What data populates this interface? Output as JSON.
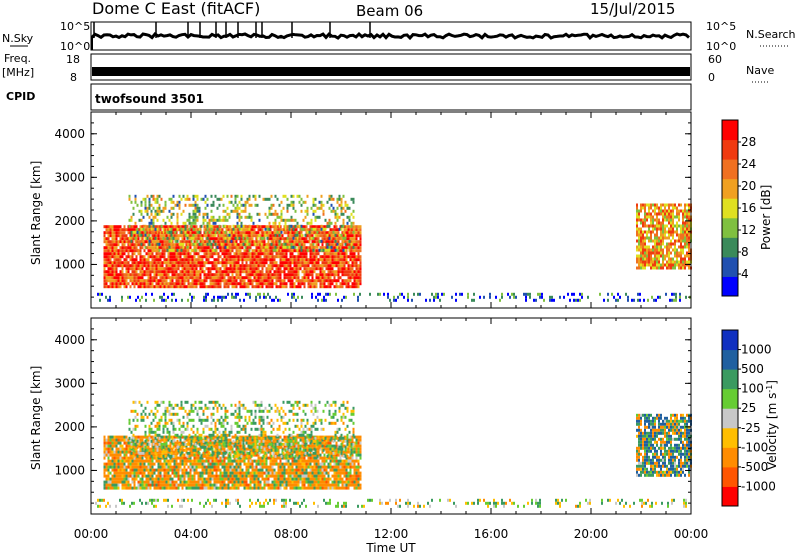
{
  "header": {
    "title": "Dome C East (fitACF)",
    "beam": "Beam 06",
    "date": "15/Jul/2015"
  },
  "top_panels": {
    "nsky_label": "N.Sky",
    "nsky_ticks": [
      "10^5",
      "10^0"
    ],
    "nsearch_label": "N.Search",
    "nsearch_ticks": [
      "10^5",
      "10^0"
    ],
    "freq_label": "Freq.",
    "freq_unit": "[MHz]",
    "freq_ticks": [
      "18",
      "8"
    ],
    "nave_label": "Nave",
    "nave_ticks": [
      "60",
      "0"
    ],
    "cpid_label": "CPID",
    "cpid_value": "twofsound 3501"
  },
  "colors": {
    "power": [
      "#0000ff",
      "#2050b0",
      "#3a8a5a",
      "#7fc040",
      "#e0e020",
      "#f0a020",
      "#f07020",
      "#f03a10",
      "#ff0000"
    ],
    "velocity": [
      "#ff0000",
      "#ff5500",
      "#ff8c00",
      "#ffbe00",
      "#c8c8c8",
      "#66cc33",
      "#3a9a60",
      "#2060a0",
      "#1030c0"
    ]
  },
  "chart_data": [
    {
      "type": "heatmap",
      "panel": "power",
      "xlabel": "",
      "ylabel": "Slant Range [km]",
      "x_ticks": [
        "00:00",
        "04:00",
        "08:00",
        "12:00",
        "16:00",
        "20:00",
        "00:00"
      ],
      "xlim_hours": [
        0,
        24
      ],
      "ylim": [
        0,
        4500
      ],
      "y_ticks": [
        1000,
        2000,
        3000,
        4000
      ],
      "colorbar": {
        "label": "Power [dB]",
        "ticks": [
          4,
          8,
          12,
          16,
          20,
          24,
          28
        ],
        "range": [
          0,
          32
        ]
      },
      "regions": [
        {
          "t_start": 0.5,
          "t_end": 10.8,
          "range_lo": 500,
          "range_hi": 1900,
          "value": 26
        },
        {
          "t_start": 1.5,
          "t_end": 10.5,
          "range_lo": 1300,
          "range_hi": 2600,
          "value": 14
        },
        {
          "t_start": 21.8,
          "t_end": 24.0,
          "range_lo": 900,
          "range_hi": 2400,
          "value": 20
        },
        {
          "t_start": 0.0,
          "t_end": 24.0,
          "range_lo": 150,
          "range_hi": 350,
          "value": 6
        }
      ]
    },
    {
      "type": "heatmap",
      "panel": "velocity",
      "xlabel": "Time UT",
      "ylabel": "Slant Range [km]",
      "x_ticks": [
        "00:00",
        "04:00",
        "08:00",
        "12:00",
        "16:00",
        "20:00",
        "00:00"
      ],
      "xlim_hours": [
        0,
        24
      ],
      "ylim": [
        0,
        4500
      ],
      "y_ticks": [
        1000,
        2000,
        3000,
        4000
      ],
      "colorbar": {
        "label": "Velocity [m s^-1]",
        "ticks": [
          "1000",
          "500",
          "100",
          "25",
          "-25",
          "-100",
          "-500",
          "-1000"
        ]
      },
      "regions": [
        {
          "t_start": 0.5,
          "t_end": 10.8,
          "range_lo": 600,
          "range_hi": 1800,
          "value": -150
        },
        {
          "t_start": 1.5,
          "t_end": 10.5,
          "range_lo": 1300,
          "range_hi": 2600,
          "value": 50
        },
        {
          "t_start": 21.8,
          "t_end": 24.0,
          "range_lo": 900,
          "range_hi": 2300,
          "value": 300
        },
        {
          "t_start": 0.0,
          "t_end": 24.0,
          "range_lo": 150,
          "range_hi": 350,
          "value": 30
        }
      ]
    }
  ]
}
